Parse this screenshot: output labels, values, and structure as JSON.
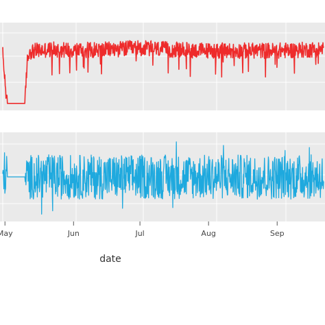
{
  "chart_data": [
    {
      "type": "line",
      "title": "",
      "xlabel": "date",
      "ylabel": "",
      "x_ticks": [
        "May",
        "Jun",
        "Jul",
        "Aug",
        "Sep"
      ],
      "x_range": [
        "2020-04-30",
        "2020-09-22"
      ],
      "grid": true,
      "legend": "none",
      "series": [
        {
          "color": "#ee2b2b",
          "profile": [
            [
              "2020-04-30",
              0.65
            ],
            [
              "2020-05-01",
              0.35
            ],
            [
              "2020-05-02",
              0.08
            ],
            [
              "2020-05-05",
              0.08
            ],
            [
              "2020-05-08",
              0.08
            ],
            [
              "2020-05-10",
              0.08
            ],
            [
              "2020-05-11",
              0.55
            ],
            [
              "2020-05-12",
              0.68
            ],
            [
              "2020-05-20",
              0.7
            ],
            [
              "2020-06-01",
              0.7
            ],
            [
              "2020-06-15",
              0.7
            ],
            [
              "2020-07-01",
              0.72
            ],
            [
              "2020-07-15",
              0.7
            ],
            [
              "2020-08-01",
              0.69
            ],
            [
              "2020-08-15",
              0.69
            ],
            [
              "2020-09-01",
              0.69
            ],
            [
              "2020-09-15",
              0.7
            ],
            [
              "2020-09-22",
              0.71
            ]
          ]
        }
      ]
    },
    {
      "type": "line",
      "title": "",
      "xlabel": "date",
      "ylabel": "",
      "x_ticks": [
        "May",
        "Jun",
        "Jul",
        "Aug",
        "Sep"
      ],
      "x_range": [
        "2020-04-30",
        "2020-09-22"
      ],
      "grid": true,
      "legend": "none",
      "series": [
        {
          "color": "#1ea9de",
          "profile": [
            [
              "2020-04-30",
              0.5
            ],
            [
              "2020-05-01",
              0.55
            ],
            [
              "2020-05-02",
              0.5
            ],
            [
              "2020-05-10",
              0.5
            ],
            [
              "2020-05-11",
              0.5
            ],
            [
              "2020-06-01",
              0.5
            ],
            [
              "2020-07-01",
              0.5
            ],
            [
              "2020-08-01",
              0.5
            ],
            [
              "2020-09-01",
              0.5
            ],
            [
              "2020-09-22",
              0.5
            ]
          ]
        }
      ]
    }
  ]
}
